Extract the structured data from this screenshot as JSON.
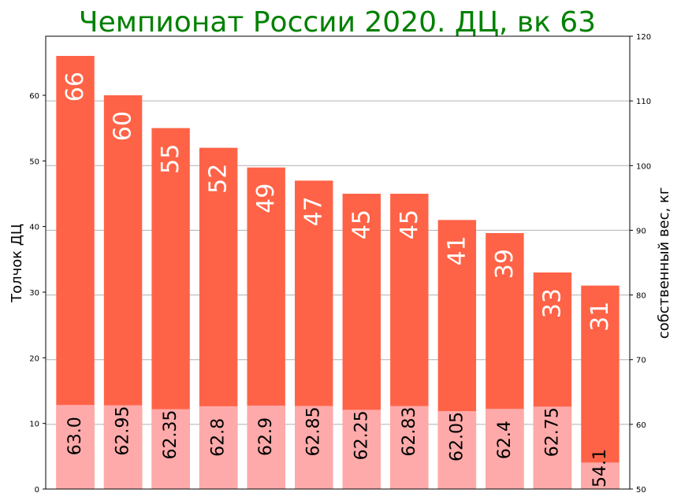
{
  "chart_data": {
    "type": "bar",
    "title": "Чемпионат России 2020. ДЦ, вк 63",
    "ylabel": "Толчок ДЦ",
    "ylabel_right": "собственный вес, кг",
    "ylim": [
      0,
      69
    ],
    "ylim_right": [
      50,
      120
    ],
    "yticks": [
      0,
      10,
      20,
      30,
      40,
      50,
      60
    ],
    "yticks_right": [
      50,
      60,
      70,
      80,
      90,
      100,
      110,
      120
    ],
    "grid": "y-right",
    "series": [
      {
        "values": [
          66,
          60,
          55,
          52,
          49,
          47,
          45,
          45,
          41,
          39,
          33,
          31
        ],
        "color": "#ff6347"
      },
      {
        "axis": "right",
        "values": [
          63.0,
          62.95,
          62.35,
          62.8,
          62.9,
          62.85,
          62.25,
          62.83,
          62.05,
          62.4,
          62.75,
          54.1
        ],
        "labels": [
          "63.0",
          "62.95",
          "62.35",
          "62.8",
          "62.9",
          "62.85",
          "62.25",
          "62.83",
          "62.05",
          "62.4",
          "62.75",
          "54.1"
        ],
        "color": "#ffaaaa"
      }
    ]
  }
}
